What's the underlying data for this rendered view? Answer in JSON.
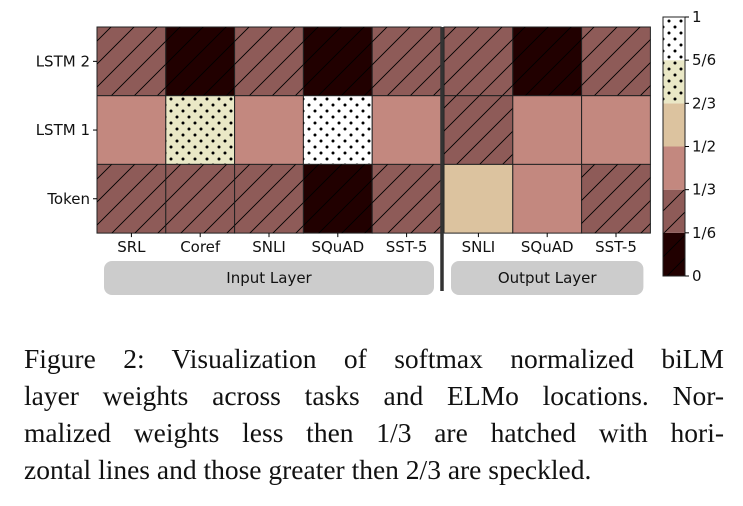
{
  "chart_data": {
    "type": "heatmap",
    "rows": [
      "LSTM 2",
      "LSTM 1",
      "Token"
    ],
    "groups": [
      {
        "label": "Input Layer",
        "columns": [
          "SRL",
          "Coref",
          "SNLI",
          "SQuAD",
          "SST-5"
        ]
      },
      {
        "label": "Output Layer",
        "columns": [
          "SNLI",
          "SQuAD",
          "SST-5"
        ]
      }
    ],
    "values": [
      [
        0.25,
        0.08,
        0.25,
        0.08,
        0.25,
        0.25,
        0.08,
        0.25
      ],
      [
        0.42,
        0.75,
        0.42,
        0.92,
        0.42,
        0.25,
        0.42,
        0.42
      ],
      [
        0.25,
        0.25,
        0.25,
        0.08,
        0.25,
        0.58,
        0.42,
        0.25
      ]
    ],
    "colorbar": {
      "range": [
        0,
        1
      ],
      "bins": [
        {
          "from": 0,
          "to": 0.1667,
          "color": "#210000",
          "pattern": "hatch"
        },
        {
          "from": 0.1667,
          "to": 0.3333,
          "color": "#8e5b58",
          "pattern": "hatch"
        },
        {
          "from": 0.3333,
          "to": 0.5,
          "color": "#c3887f",
          "pattern": "none"
        },
        {
          "from": 0.5,
          "to": 0.6667,
          "color": "#dcc39f",
          "pattern": "none"
        },
        {
          "from": 0.6667,
          "to": 0.8333,
          "color": "#eae8c6",
          "pattern": "dots"
        },
        {
          "from": 0.8333,
          "to": 1,
          "color": "#ffffff",
          "pattern": "dots"
        }
      ],
      "tick_labels": [
        "0",
        "1/6",
        "1/3",
        "1/2",
        "2/3",
        "5/6",
        "1"
      ]
    },
    "group_label_color": "#cccccc"
  },
  "caption": {
    "lines": [
      "Figure 2:  Visualization of softmax normalized biLM",
      "layer weights across tasks and ELMo locations.  Nor-",
      "malized weights less then 1/3 are hatched with hori-",
      "zontal lines and those greater then 2/3 are speckled."
    ]
  }
}
